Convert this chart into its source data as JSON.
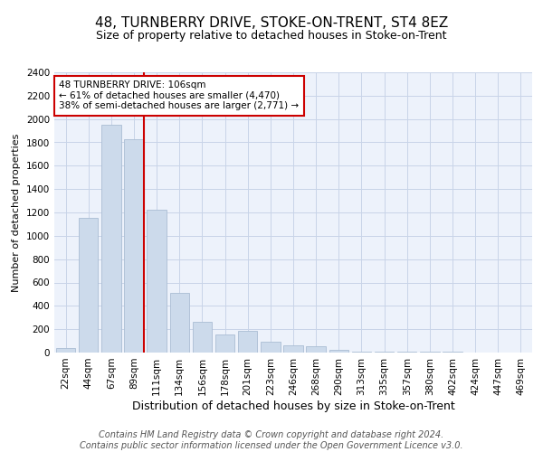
{
  "title": "48, TURNBERRY DRIVE, STOKE-ON-TRENT, ST4 8EZ",
  "subtitle": "Size of property relative to detached houses in Stoke-on-Trent",
  "xlabel": "Distribution of detached houses by size in Stoke-on-Trent",
  "ylabel": "Number of detached properties",
  "categories": [
    "22sqm",
    "44sqm",
    "67sqm",
    "89sqm",
    "111sqm",
    "134sqm",
    "156sqm",
    "178sqm",
    "201sqm",
    "223sqm",
    "246sqm",
    "268sqm",
    "290sqm",
    "313sqm",
    "335sqm",
    "357sqm",
    "380sqm",
    "402sqm",
    "424sqm",
    "447sqm",
    "469sqm"
  ],
  "values": [
    40,
    1150,
    1950,
    1830,
    1220,
    510,
    265,
    155,
    185,
    90,
    60,
    55,
    20,
    10,
    5,
    5,
    5,
    5,
    2,
    2,
    2
  ],
  "bar_color": "#ccdaeb",
  "bar_edge_color": "#aabdd4",
  "vline_color": "#cc0000",
  "vline_pos": 3.42,
  "annotation_text": "48 TURNBERRY DRIVE: 106sqm\n← 61% of detached houses are smaller (4,470)\n38% of semi-detached houses are larger (2,771) →",
  "annotation_box_color": "#cc0000",
  "ylim": [
    0,
    2400
  ],
  "yticks": [
    0,
    200,
    400,
    600,
    800,
    1000,
    1200,
    1400,
    1600,
    1800,
    2000,
    2200,
    2400
  ],
  "footer": "Contains HM Land Registry data © Crown copyright and database right 2024.\nContains public sector information licensed under the Open Government Licence v3.0.",
  "grid_color": "#c8d4e8",
  "background_color": "#edf2fb",
  "title_fontsize": 11,
  "subtitle_fontsize": 9,
  "xlabel_fontsize": 9,
  "ylabel_fontsize": 8,
  "footer_fontsize": 7,
  "tick_fontsize": 7.5,
  "annotation_fontsize": 7.5
}
